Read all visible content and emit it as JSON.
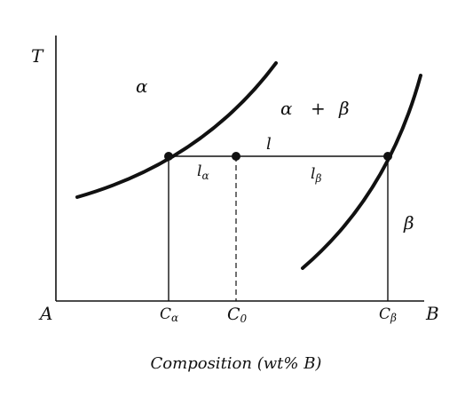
{
  "diagram": {
    "axis": {
      "y_label": "T",
      "origin_label": "A",
      "x_end_label": "B",
      "x_title": "Composition (wt% B)"
    },
    "regions": {
      "alpha": "α",
      "two_phase": {
        "alpha": "α",
        "plus": "+",
        "beta": "β"
      },
      "beta": "β"
    },
    "tie_line": {
      "label": "l",
      "left_segment": {
        "main": "l",
        "sub": "α"
      },
      "right_segment": {
        "main": "l",
        "sub": "β"
      }
    },
    "compositions": {
      "c_alpha": {
        "main": "C",
        "sub": "α"
      },
      "c_zero": {
        "main": "C",
        "sub": "0"
      },
      "c_beta": {
        "main": "C",
        "sub": "β"
      }
    },
    "colors": {
      "ink": "#111111",
      "background": "#ffffff"
    }
  }
}
